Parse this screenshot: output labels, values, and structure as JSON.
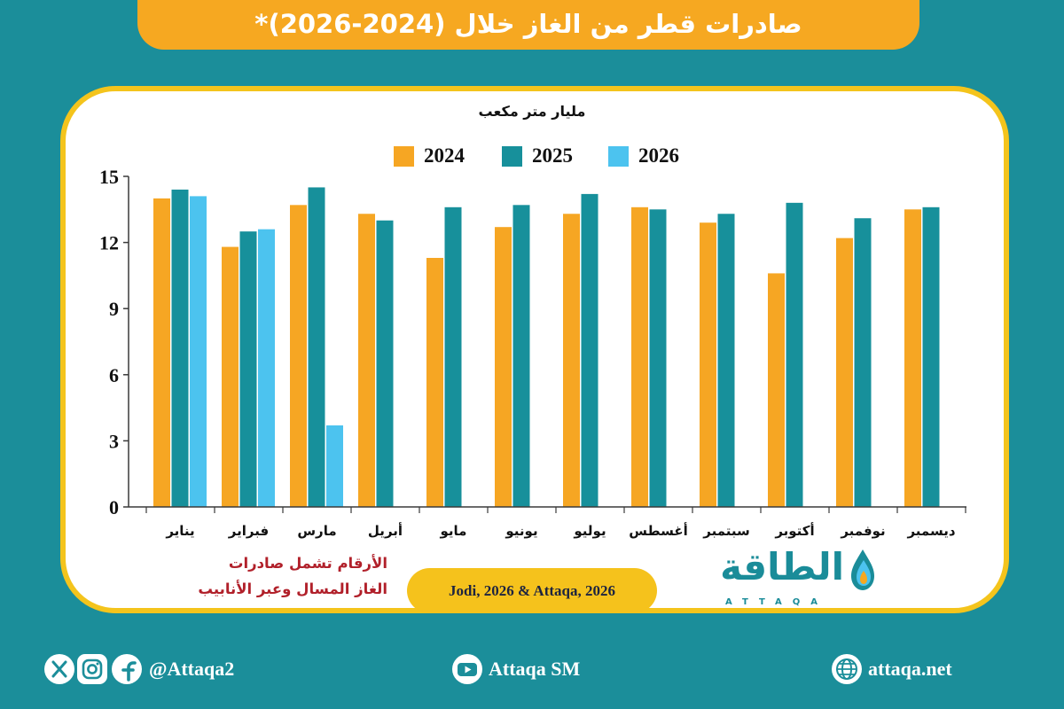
{
  "chart_data": {
    "type": "bar",
    "title": "صادرات قطر من الغاز خلال (2024-2026)*",
    "xlabel": "",
    "ylabel": "مليار متر مكعب",
    "categories": [
      "يناير",
      "فبراير",
      "مارس",
      "أبريل",
      "مايو",
      "يونيو",
      "يوليو",
      "أغسطس",
      "سبتمبر",
      "أكتوبر",
      "نوفمبر",
      "ديسمبر"
    ],
    "series": [
      {
        "name": "2024",
        "color": "#f6a623",
        "values": [
          14.0,
          11.8,
          13.7,
          13.3,
          11.3,
          12.7,
          13.3,
          13.6,
          12.9,
          10.6,
          12.2,
          13.5
        ]
      },
      {
        "name": "2025",
        "color": "#17909b",
        "values": [
          14.4,
          12.5,
          14.5,
          13.0,
          13.6,
          13.7,
          14.2,
          13.5,
          13.3,
          13.8,
          13.1,
          13.6
        ]
      },
      {
        "name": "2026",
        "color": "#4cc3ef",
        "values": [
          14.1,
          12.6,
          3.7,
          null,
          null,
          null,
          null,
          null,
          null,
          null,
          null,
          null
        ]
      }
    ],
    "ylim": [
      0,
      15
    ],
    "yticks": [
      0,
      3,
      6,
      9,
      12,
      15
    ],
    "grid": false,
    "legend": "top"
  },
  "note": {
    "lines": [
      "الأرقام تشمل صادرات",
      "الغاز المسال وعبر الأنابيب"
    ]
  },
  "source": "Jodi, 2026 & Attaqa, 2026",
  "logo": {
    "arabic": "الطاقة",
    "latin": "ATTAQA",
    "icon": "flame-icon"
  },
  "footer": {
    "social": {
      "icons": [
        "x-icon",
        "instagram-icon",
        "facebook-icon"
      ],
      "handle": "@Attaqa2"
    },
    "youtube": {
      "icon": "youtube-icon",
      "label": "Attaqa SM"
    },
    "website": {
      "icon": "globe-icon",
      "label": "attaqa.net"
    }
  },
  "colors": {
    "background": "#1b8e9a",
    "banner": "#f6a821",
    "card_border": "#f4c41c",
    "note_text": "#b1202a"
  }
}
